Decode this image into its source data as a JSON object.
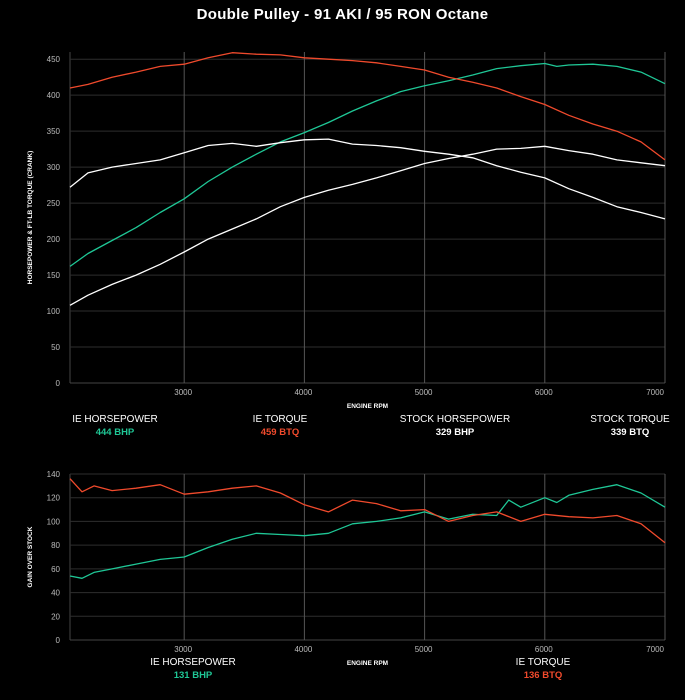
{
  "title": "Double Pulley - 91 AKI / 95 RON Octane",
  "colors": {
    "ie_hp": "#1fc796",
    "ie_tq": "#f04a2c",
    "stock": "#ffffff",
    "grid": "#444444"
  },
  "legend_top": [
    {
      "label": "IE HORSEPOWER",
      "value": "444 BHP",
      "color": "#1fc796"
    },
    {
      "label": "IE TORQUE",
      "value": "459 BTQ",
      "color": "#f04a2c"
    },
    {
      "label": "STOCK HORSEPOWER",
      "value": "329 BHP",
      "color": "#ffffff"
    },
    {
      "label": "STOCK TORQUE",
      "value": "339 BTQ",
      "color": "#ffffff"
    }
  ],
  "legend_bottom": [
    {
      "label": "IE HORSEPOWER",
      "value": "131 BHP",
      "color": "#1fc796"
    },
    {
      "label": "IE TORQUE",
      "value": "136 BTQ",
      "color": "#f04a2c"
    }
  ],
  "chart_data": [
    {
      "type": "line",
      "xlabel": "ENGINE RPM",
      "ylabel": "HORSEPOWER & FT-LB TORQUE (CRANK)",
      "xlim": [
        2050,
        7000
      ],
      "ylim": [
        0,
        460
      ],
      "xticks": [
        3000,
        4000,
        5000,
        6000,
        7000
      ],
      "yticks": [
        0,
        50,
        100,
        150,
        200,
        250,
        300,
        350,
        400,
        450
      ],
      "grid": true,
      "series": [
        {
          "name": "IE HORSEPOWER",
          "color": "#1fc796",
          "x": [
            2050,
            2200,
            2400,
            2600,
            2800,
            3000,
            3200,
            3400,
            3600,
            3800,
            4000,
            4200,
            4400,
            4600,
            4800,
            5000,
            5200,
            5400,
            5600,
            5800,
            6000,
            6100,
            6200,
            6400,
            6600,
            6800,
            7000
          ],
          "y": [
            162,
            180,
            198,
            216,
            237,
            256,
            280,
            300,
            318,
            335,
            348,
            362,
            378,
            392,
            405,
            413,
            420,
            428,
            437,
            441,
            444,
            440,
            442,
            443,
            440,
            432,
            416
          ]
        },
        {
          "name": "IE TORQUE",
          "color": "#f04a2c",
          "x": [
            2050,
            2200,
            2400,
            2600,
            2800,
            3000,
            3200,
            3400,
            3600,
            3800,
            4000,
            4200,
            4400,
            4600,
            4800,
            5000,
            5200,
            5400,
            5600,
            5800,
            6000,
            6200,
            6400,
            6600,
            6800,
            7000
          ],
          "y": [
            410,
            415,
            425,
            432,
            440,
            443,
            452,
            459,
            457,
            456,
            452,
            450,
            448,
            445,
            440,
            435,
            425,
            418,
            410,
            398,
            387,
            372,
            360,
            350,
            335,
            310
          ]
        },
        {
          "name": "STOCK HORSEPOWER",
          "color": "#ffffff",
          "x": [
            2050,
            2200,
            2400,
            2600,
            2800,
            3000,
            3200,
            3400,
            3600,
            3800,
            4000,
            4200,
            4400,
            4600,
            4800,
            5000,
            5200,
            5400,
            5600,
            5800,
            6000,
            6200,
            6400,
            6600,
            6800,
            7000
          ],
          "y": [
            108,
            122,
            137,
            150,
            165,
            182,
            200,
            214,
            228,
            245,
            258,
            268,
            276,
            285,
            295,
            305,
            312,
            318,
            325,
            326,
            329,
            323,
            318,
            310,
            306,
            302
          ]
        },
        {
          "name": "STOCK TORQUE",
          "color": "#ffffff",
          "x": [
            2050,
            2200,
            2400,
            2600,
            2800,
            3000,
            3200,
            3400,
            3600,
            3800,
            4000,
            4200,
            4400,
            4600,
            4800,
            5000,
            5200,
            5400,
            5600,
            5800,
            6000,
            6200,
            6400,
            6600,
            6800,
            7000
          ],
          "y": [
            272,
            292,
            300,
            305,
            310,
            320,
            330,
            333,
            329,
            334,
            338,
            339,
            332,
            330,
            327,
            322,
            318,
            313,
            302,
            293,
            285,
            270,
            258,
            245,
            237,
            228
          ]
        }
      ]
    },
    {
      "type": "line",
      "xlabel": "ENGINE RPM",
      "ylabel": "GAIN OVER STOCK",
      "xlim": [
        2050,
        7000
      ],
      "ylim": [
        0,
        140
      ],
      "xticks": [
        3000,
        4000,
        5000,
        6000,
        7000
      ],
      "yticks": [
        0,
        20,
        40,
        60,
        80,
        100,
        120,
        140
      ],
      "grid": true,
      "series": [
        {
          "name": "IE HORSEPOWER",
          "color": "#1fc796",
          "x": [
            2050,
            2150,
            2250,
            2400,
            2600,
            2800,
            3000,
            3200,
            3400,
            3600,
            3800,
            4000,
            4200,
            4400,
            4600,
            4800,
            5000,
            5200,
            5400,
            5600,
            5700,
            5800,
            6000,
            6100,
            6200,
            6400,
            6600,
            6800,
            7000
          ],
          "y": [
            54,
            52,
            57,
            60,
            64,
            68,
            70,
            78,
            85,
            90,
            89,
            88,
            90,
            98,
            100,
            103,
            108,
            102,
            106,
            105,
            118,
            112,
            120,
            116,
            122,
            127,
            131,
            124,
            112
          ]
        },
        {
          "name": "IE TORQUE",
          "color": "#f04a2c",
          "x": [
            2050,
            2150,
            2250,
            2400,
            2600,
            2800,
            3000,
            3200,
            3400,
            3600,
            3800,
            4000,
            4200,
            4400,
            4600,
            4800,
            5000,
            5200,
            5400,
            5600,
            5800,
            6000,
            6200,
            6400,
            6600,
            6800,
            7000
          ],
          "y": [
            136,
            125,
            130,
            126,
            128,
            131,
            123,
            125,
            128,
            130,
            124,
            114,
            108,
            118,
            115,
            109,
            110,
            100,
            105,
            108,
            100,
            106,
            104,
            103,
            105,
            98,
            82
          ]
        }
      ]
    }
  ]
}
